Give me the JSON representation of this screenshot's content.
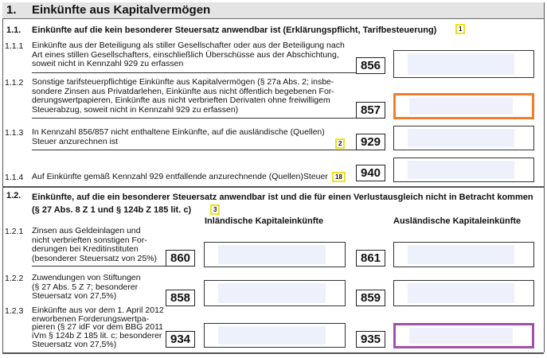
{
  "section": {
    "number": "1.",
    "title": "Einkünfte aus Kapitalvermögen"
  },
  "s11": {
    "number": "1.1.",
    "title": "Einkünfte auf die kein besonderer Steuersatz anwendbar ist (Erklärungspflicht, Tarifbesteuerung)",
    "badge": "1",
    "rows": [
      {
        "number": "1.1.1",
        "lines": [
          "Einkünfte aus der Beteiligung als stiller Gesellschafter oder aus der Beteiligung nach",
          "Art eines stillen Gesellschafters, einschließlich Überschüsse aus der Abschichtung,",
          "soweit nicht in Kennzahl 929 zu erfassen"
        ],
        "code": "856",
        "value": ""
      },
      {
        "number": "1.1.2",
        "lines": [
          "Sonstige tarifsteuerpflichtige Einkünfte aus Kapitalvermögen (§ 27a Abs. 2; insbe-",
          "sondere Zinsen aus Privatdarlehen, Einkünfte aus nicht öffentlich begebenen For-",
          "derungswertpapieren, Einkünfte aus nicht verbrieften Derivaten ohne freiwilligem",
          "Steuerabzug, soweit nicht in Kennzahl 929 zu erfassen)"
        ],
        "code": "857",
        "value": ""
      },
      {
        "number": "1.1.3",
        "lines": [
          "In Kennzahl 856/857 nicht enthaltene Einkünfte, auf die ausländische (Quellen)",
          "Steuer anzurechnen ist"
        ],
        "badge": "2",
        "code": "929",
        "value": ""
      },
      {
        "number": "1.1.4",
        "lines": [
          "Auf Einkünfte gemäß Kennzahl 929 entfallende anzurechnende (Quellen)Steuer"
        ],
        "badge": "18",
        "code": "940",
        "value": ""
      }
    ]
  },
  "s12": {
    "number": "1.2.",
    "title_lines": [
      "Einkünfte, auf die ein besonderer Steuersatz anwendbar ist und die für einen Verlustausgleich nicht in Betracht kommen",
      "(§ 27 Abs. 8 Z 1 und § 124b Z 185 lit. c)"
    ],
    "badge": "3",
    "col_domestic": "Inländische Kapitaleinkünfte",
    "col_foreign": "Ausländische Kapitaleinkünfte",
    "rows": [
      {
        "number": "1.2.1",
        "lines": [
          "Zinsen aus Geldeinlagen und",
          "nicht verbrieften sonstigen For-",
          "derungen bei Kreditinstituten",
          "(besonderer Steuersatz von 25%)"
        ],
        "code_domestic": "860",
        "code_foreign": "861",
        "value_domestic": "",
        "value_foreign": ""
      },
      {
        "number": "1.2.2",
        "lines": [
          "Zuwendungen von Stiftungen",
          "(§ 27 Abs. 5 Z 7; besonderer",
          "Steuersatz von 27,5%)"
        ],
        "code_domestic": "858",
        "code_foreign": "859",
        "value_domestic": "",
        "value_foreign": ""
      },
      {
        "number": "1.2.3",
        "lines": [
          "Einkünfte aus vor dem 1. April 2012",
          "erworbenen Forderungswertpa-",
          "pieren (§ 27 idF vor dem BBG 2011",
          "iVm § 124b Z 185 lit. c; besonderer",
          "Steuersatz von 27,5%)"
        ],
        "code_domestic": "934",
        "code_foreign": "935",
        "value_domestic": "",
        "value_foreign": ""
      }
    ]
  },
  "colors": {
    "focus_orange": "#f07d2a",
    "focus_purple": "#a050a8",
    "input_fill": "#eef0fb",
    "badge_border": "#f0e020"
  }
}
